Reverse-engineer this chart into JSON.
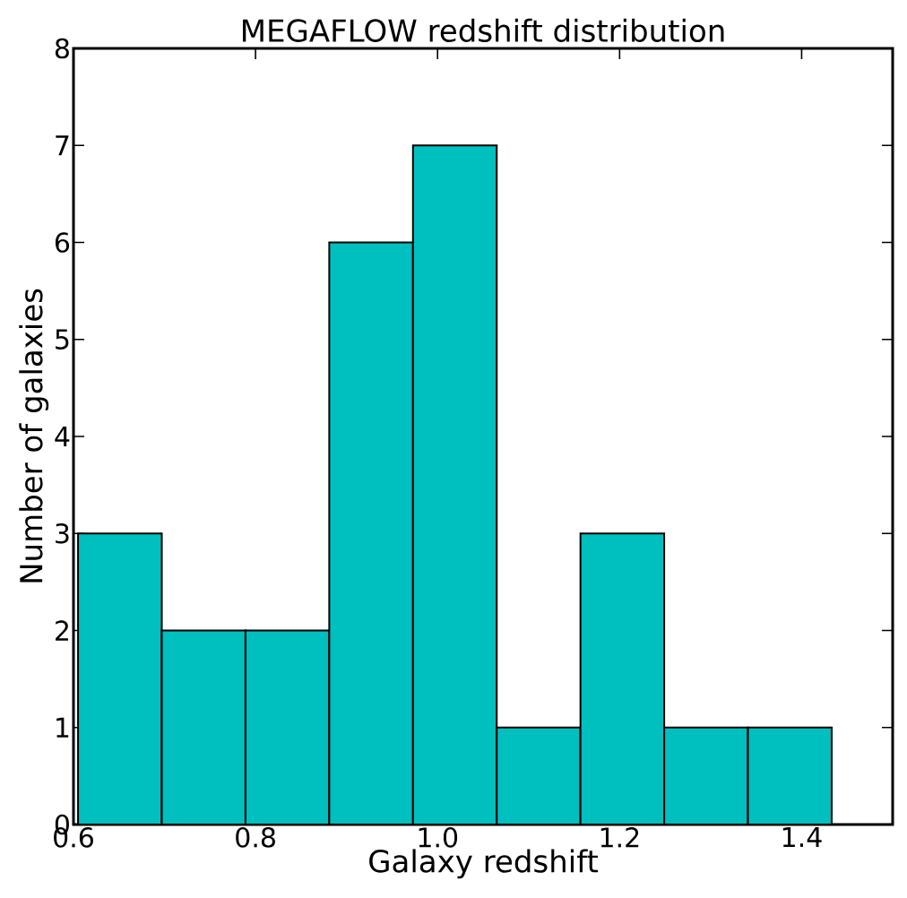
{
  "chart_data": {
    "type": "histogram",
    "title": "MEGAFLOW redshift distribution",
    "xlabel": "Galaxy redshift",
    "ylabel": "Number of galaxies",
    "bins": [
      0.605,
      0.697,
      0.789,
      0.881,
      0.973,
      1.065,
      1.157,
      1.249,
      1.341,
      1.433
    ],
    "values": [
      3,
      2,
      2,
      6,
      7,
      1,
      3,
      1,
      1
    ],
    "color": "#00bfbf",
    "xlim": [
      0.6,
      1.5
    ],
    "xticks": [
      {
        "value": 0.6,
        "label": "0.6"
      },
      {
        "value": 0.8,
        "label": "0.8"
      },
      {
        "value": 1.0,
        "label": "1.0"
      },
      {
        "value": 1.2,
        "label": "1.2"
      },
      {
        "value": 1.4,
        "label": "1.4"
      }
    ],
    "ylim": [
      0,
      8
    ],
    "yticks": [
      0,
      1,
      2,
      3,
      4,
      5,
      6,
      7,
      8
    ]
  }
}
